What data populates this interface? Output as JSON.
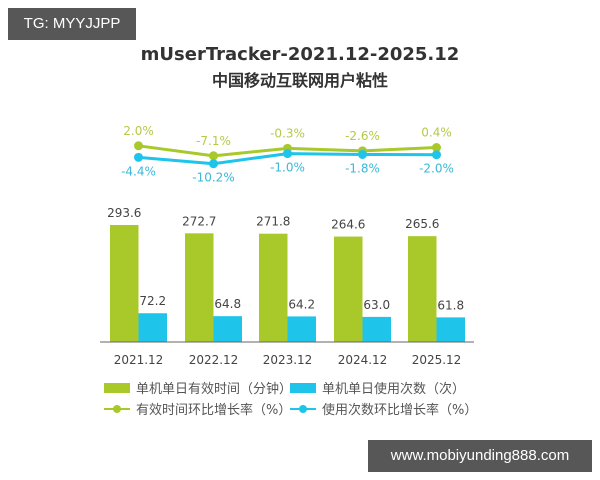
{
  "watermarks": {
    "top_left": "TG: MYYJJPP",
    "bottom_right": "www.mobiyunding888.com"
  },
  "title": {
    "line1": "mUserTracker-2021.12-2025.12",
    "line2": "中国移动互联网用户粘性"
  },
  "colors": {
    "green": "#a8c929",
    "blue": "#1ec4ea",
    "green_label": "#b6c94a",
    "blue_label": "#3bb8d8",
    "axis": "#666666"
  },
  "legend": {
    "bar_green": "单机单日有效时间（分钟）",
    "bar_blue": "单机单日使用次数（次）",
    "line_green": "有效时间环比增长率（%）",
    "line_blue": "使用次数环比增长率（%）"
  },
  "chart_data": {
    "type": "bar",
    "title": "mUserTracker-2021.12-2025.12 中国移动互联网用户粘性",
    "categories": [
      "2021.12",
      "2022.12",
      "2023.12",
      "2024.12",
      "2025.12"
    ],
    "series": [
      {
        "name": "单机单日有效时间（分钟）",
        "type": "bar",
        "values": [
          293.6,
          272.7,
          271.8,
          264.6,
          265.6
        ]
      },
      {
        "name": "单机单日使用次数（次）",
        "type": "bar",
        "values": [
          72.2,
          64.8,
          64.2,
          63.0,
          61.8
        ]
      },
      {
        "name": "有效时间环比增长率（%）",
        "type": "line",
        "values": [
          2.0,
          -7.1,
          -0.3,
          -2.6,
          0.4
        ]
      },
      {
        "name": "使用次数环比增长率（%）",
        "type": "line",
        "values": [
          -4.4,
          -10.2,
          -1.0,
          -1.8,
          -2.0
        ]
      }
    ],
    "bar_labels": {
      "green": [
        "293.6",
        "272.7",
        "271.8",
        "264.6",
        "265.6"
      ],
      "blue": [
        "72.2",
        "64.8",
        "64.2",
        "63.0",
        "61.8"
      ]
    },
    "line_labels": {
      "green": [
        "2.0%",
        "-7.1%",
        "-0.3%",
        "-2.6%",
        "0.4%"
      ],
      "blue": [
        "-4.4%",
        "-10.2%",
        "-1.0%",
        "-1.8%",
        "-2.0%"
      ]
    },
    "xlabel": "",
    "ylabel": "",
    "grid": false,
    "legend_position": "bottom"
  }
}
